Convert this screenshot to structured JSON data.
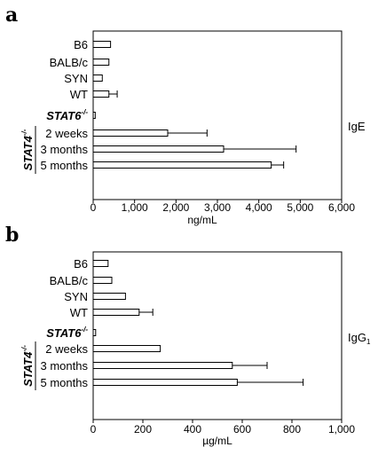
{
  "chart_data": [
    {
      "panel": "a",
      "type": "bar",
      "orientation": "horizontal",
      "categories": [
        "B6",
        "BALB/c",
        "SYN",
        "WT",
        "STAT6-/-",
        "2 weeks",
        "3 months",
        "5 months"
      ],
      "values": [
        420,
        380,
        220,
        380,
        50,
        1800,
        3150,
        4300
      ],
      "errors": [
        0,
        0,
        0,
        200,
        0,
        950,
        1750,
        300
      ],
      "group_label": "STAT4-/-",
      "group_members": [
        "2 weeks",
        "3 months",
        "5 months"
      ],
      "xlabel": "ng/mL",
      "side_label": "IgE",
      "xlim": [
        0,
        6000
      ],
      "xticks": [
        "0",
        "1,000",
        "2,000",
        "3,000",
        "4,000",
        "5,000",
        "6,000"
      ],
      "grid": false
    },
    {
      "panel": "b",
      "type": "bar",
      "orientation": "horizontal",
      "categories": [
        "B6",
        "BALB/c",
        "SYN",
        "WT",
        "STAT6-/-",
        "2 weeks",
        "3 months",
        "5 months"
      ],
      "values": [
        60,
        75,
        130,
        185,
        10,
        270,
        560,
        580
      ],
      "errors": [
        0,
        0,
        0,
        55,
        0,
        0,
        140,
        265
      ],
      "group_label": "STAT4-/-",
      "group_members": [
        "2 weeks",
        "3 months",
        "5 months"
      ],
      "xlabel": "µg/mL",
      "side_label": "IgG1",
      "xlim": [
        0,
        1000
      ],
      "xticks": [
        "0",
        "200",
        "400",
        "600",
        "800",
        "1,000"
      ],
      "grid": false
    }
  ]
}
